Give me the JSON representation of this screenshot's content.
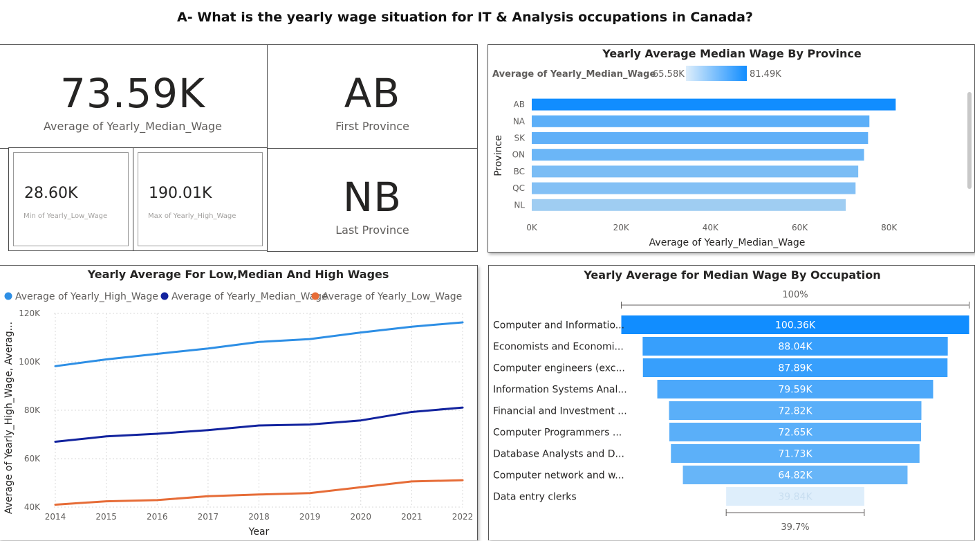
{
  "page": {
    "title": "A-  What is the yearly wage situation for IT & Analysis occupations in Canada?"
  },
  "cards": {
    "avg_median": {
      "value": "73.59K",
      "label": "Average of Yearly_Median_Wage"
    },
    "first_province": {
      "value": "AB",
      "label": "First Province"
    },
    "last_province": {
      "value": "NB",
      "label": "Last Province"
    },
    "min_low": {
      "value": "28.60K",
      "label": "Min of Yearly_Low_Wage"
    },
    "max_high": {
      "value": "190.01K",
      "label": "Max of Yearly_High_Wage"
    }
  },
  "colors": {
    "high": "#2e8fe5",
    "median": "#12239e",
    "low": "#e66c37",
    "bar_max": "#118dff",
    "bar_min": "#deeefb"
  },
  "chart_data": [
    {
      "type": "bar",
      "orientation": "horizontal",
      "title": "Yearly Average Median Wage By Province",
      "legend": {
        "title": "Average of Yearly_Median_Wage",
        "min_label": "65.58K",
        "max_label": "81.49K"
      },
      "xlabel": "Average of Yearly_Median_Wage",
      "ylabel": "Province",
      "categories": [
        "AB",
        "NA",
        "SK",
        "ON",
        "BC",
        "QC",
        "NL"
      ],
      "values": [
        81.49,
        75.6,
        75.3,
        74.4,
        73.1,
        72.5,
        70.3
      ],
      "xlim": [
        0,
        85
      ],
      "xticks": [
        "0K",
        "20K",
        "40K",
        "60K",
        "80K"
      ],
      "xtick_values": [
        0,
        20,
        40,
        60,
        80
      ]
    },
    {
      "type": "line",
      "title": "Yearly Average For Low,Median And High Wages",
      "xlabel": "Year",
      "ylabel": "Average of Yearly_High_Wage, Averag...",
      "x": [
        2014,
        2015,
        2016,
        2017,
        2018,
        2019,
        2020,
        2021,
        2022
      ],
      "ylim": [
        40,
        120
      ],
      "yticks": [
        "40K",
        "60K",
        "80K",
        "100K",
        "120K"
      ],
      "ytick_values": [
        40,
        60,
        80,
        100,
        120
      ],
      "series": [
        {
          "name": "Average of Yearly_High_Wage",
          "values": [
            98.2,
            101.0,
            103.3,
            105.5,
            108.2,
            109.4,
            112.1,
            114.5,
            116.3
          ]
        },
        {
          "name": "Average of Yearly_Median_Wage",
          "values": [
            67.0,
            69.2,
            70.3,
            71.8,
            73.7,
            74.1,
            75.8,
            79.3,
            81.1
          ]
        },
        {
          "name": "Average of Yearly_Low_Wage",
          "values": [
            41.0,
            42.4,
            42.9,
            44.5,
            45.2,
            45.8,
            48.2,
            50.6,
            51.1
          ]
        }
      ]
    },
    {
      "type": "bar",
      "orientation": "funnel",
      "title": "Yearly Average for Median Wage By Occupation",
      "top_percent": "100%",
      "bottom_percent": "39.7%",
      "categories": [
        "Computer and Informatio...",
        "Economists and Economi...",
        "Computer engineers (exc...",
        "Information Systems Anal...",
        "Financial and Investment ...",
        "Computer Programmers ...",
        "Database Analysts and D...",
        "Computer network and w...",
        "Data entry clerks"
      ],
      "values": [
        100.36,
        88.04,
        87.89,
        79.59,
        72.82,
        72.65,
        71.73,
        64.82,
        39.84
      ],
      "data_labels": [
        "100.36K",
        "88.04K",
        "87.89K",
        "79.59K",
        "72.82K",
        "72.65K",
        "71.73K",
        "64.82K",
        "39.84K"
      ]
    }
  ]
}
